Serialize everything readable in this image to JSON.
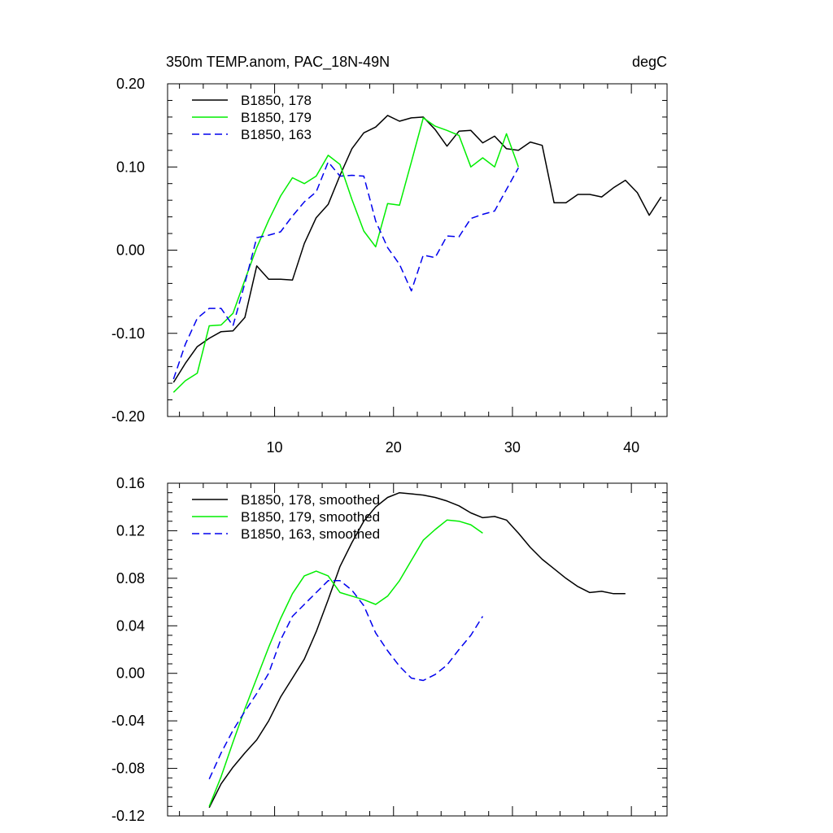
{
  "chart_data": [
    {
      "type": "line",
      "title": "350m TEMP.anom, PAC_18N-49N",
      "units": "degC",
      "xlim": [
        1,
        43
      ],
      "ylim": [
        -0.2,
        0.2
      ],
      "yticks": [
        "-0.20",
        "-0.10",
        "0.00",
        "0.10",
        "0.20"
      ],
      "xticks": [
        "10",
        "20",
        "30",
        "40"
      ],
      "series": [
        {
          "name": "B1850, 178",
          "color": "#000000",
          "dash": "solid",
          "x": [
            1.5,
            2.5,
            3.5,
            4.5,
            5.5,
            6.5,
            7.5,
            8.5,
            9.5,
            10.5,
            11.5,
            12.5,
            13.5,
            14.5,
            15.5,
            16.5,
            17.5,
            18.5,
            19.5,
            20.5,
            21.5,
            22.5,
            23.5,
            24.5,
            25.5,
            26.5,
            27.5,
            28.5,
            29.5,
            30.5,
            31.5,
            32.5,
            33.5,
            34.5,
            35.5,
            36.5,
            37.5,
            38.5,
            39.5,
            40.5,
            41.5,
            42.5
          ],
          "y": [
            -0.159,
            -0.136,
            -0.116,
            -0.106,
            -0.098,
            -0.097,
            -0.081,
            -0.019,
            -0.035,
            -0.035,
            -0.036,
            0.008,
            0.039,
            0.055,
            0.09,
            0.122,
            0.141,
            0.148,
            0.162,
            0.155,
            0.159,
            0.16,
            0.145,
            0.125,
            0.143,
            0.144,
            0.129,
            0.137,
            0.122,
            0.12,
            0.13,
            0.126,
            0.057,
            0.057,
            0.067,
            0.067,
            0.064,
            0.075,
            0.084,
            0.069,
            0.042,
            0.064
          ]
        },
        {
          "name": "B1850, 179",
          "color": "#00ee00",
          "dash": "solid",
          "x": [
            1.5,
            2.5,
            3.5,
            4.5,
            5.5,
            6.5,
            7.5,
            8.5,
            9.5,
            10.5,
            11.5,
            12.5,
            13.5,
            14.5,
            15.5,
            16.5,
            17.5,
            18.5,
            19.5,
            20.5,
            21.5,
            22.5,
            23.5,
            24.5,
            25.5,
            26.5,
            27.5,
            28.5,
            29.5,
            30.5
          ],
          "y": [
            -0.171,
            -0.157,
            -0.148,
            -0.091,
            -0.09,
            -0.076,
            -0.036,
            0.003,
            0.036,
            0.065,
            0.087,
            0.08,
            0.089,
            0.114,
            0.103,
            0.061,
            0.023,
            0.004,
            0.056,
            0.054,
            0.106,
            0.159,
            0.149,
            0.144,
            0.138,
            0.1,
            0.111,
            0.1,
            0.14,
            0.1
          ]
        },
        {
          "name": "B1850, 163",
          "color": "#0000ee",
          "dash": "dashed",
          "x": [
            1.5,
            2.5,
            3.5,
            4.5,
            5.5,
            6.5,
            7.5,
            8.5,
            9.5,
            10.5,
            11.5,
            12.5,
            13.5,
            14.5,
            15.5,
            16.5,
            17.5,
            18.5,
            19.5,
            20.5,
            21.5,
            22.5,
            23.5,
            24.5,
            25.5,
            26.5,
            27.5,
            28.5,
            29.5,
            30.5
          ],
          "y": [
            -0.155,
            -0.113,
            -0.082,
            -0.07,
            -0.07,
            -0.091,
            -0.04,
            0.015,
            0.018,
            0.022,
            0.041,
            0.058,
            0.07,
            0.106,
            0.089,
            0.09,
            0.089,
            0.035,
            0.003,
            -0.017,
            -0.049,
            -0.006,
            -0.009,
            0.017,
            0.016,
            0.038,
            0.043,
            0.047,
            0.073,
            0.099
          ]
        }
      ]
    },
    {
      "type": "line",
      "title": "",
      "xlim": [
        1,
        43
      ],
      "ylim": [
        -0.12,
        0.16
      ],
      "yticks": [
        "-0.12",
        "-0.08",
        "-0.04",
        "0.00",
        "0.04",
        "0.08",
        "0.12",
        "0.16"
      ],
      "xticks": [],
      "series": [
        {
          "name": "B1850, 178, smoothed",
          "color": "#000000",
          "dash": "solid",
          "x": [
            4.5,
            5.5,
            6.5,
            7.5,
            8.5,
            9.5,
            10.5,
            11.5,
            12.5,
            13.5,
            14.5,
            15.5,
            16.5,
            17.5,
            18.5,
            19.5,
            20.5,
            21.5,
            22.5,
            23.5,
            24.5,
            25.5,
            26.5,
            27.5,
            28.5,
            29.5,
            30.5,
            31.5,
            32.5,
            33.5,
            34.5,
            35.5,
            36.5,
            37.5,
            38.5,
            39.5
          ],
          "y": [
            -0.113,
            -0.093,
            -0.079,
            -0.067,
            -0.056,
            -0.04,
            -0.02,
            -0.004,
            0.012,
            0.035,
            0.062,
            0.09,
            0.11,
            0.128,
            0.14,
            0.148,
            0.152,
            0.151,
            0.15,
            0.148,
            0.145,
            0.141,
            0.135,
            0.131,
            0.132,
            0.129,
            0.118,
            0.106,
            0.096,
            0.088,
            0.08,
            0.073,
            0.068,
            0.069,
            0.067,
            0.067
          ]
        },
        {
          "name": "B1850, 179, smoothed",
          "color": "#00ee00",
          "dash": "solid",
          "x": [
            4.5,
            5.5,
            6.5,
            7.5,
            8.5,
            9.5,
            10.5,
            11.5,
            12.5,
            13.5,
            14.5,
            15.5,
            16.5,
            17.5,
            18.5,
            19.5,
            20.5,
            21.5,
            22.5,
            23.5,
            24.5,
            25.5,
            26.5,
            27.5
          ],
          "y": [
            -0.112,
            -0.087,
            -0.058,
            -0.03,
            -0.004,
            0.022,
            0.046,
            0.067,
            0.082,
            0.086,
            0.082,
            0.068,
            0.065,
            0.062,
            0.058,
            0.065,
            0.078,
            0.095,
            0.112,
            0.121,
            0.129,
            0.128,
            0.125,
            0.118
          ]
        },
        {
          "name": "B1850, 163, smoothed",
          "color": "#0000ee",
          "dash": "dashed",
          "x": [
            4.5,
            5.5,
            6.5,
            7.5,
            8.5,
            9.5,
            10.5,
            11.5,
            12.5,
            13.5,
            14.5,
            15.5,
            16.5,
            17.5,
            18.5,
            19.5,
            20.5,
            21.5,
            22.5,
            23.5,
            24.5,
            25.5,
            26.5,
            27.5
          ],
          "y": [
            -0.089,
            -0.067,
            -0.048,
            -0.032,
            -0.017,
            0.0,
            0.028,
            0.048,
            0.058,
            0.068,
            0.078,
            0.078,
            0.07,
            0.057,
            0.034,
            0.019,
            0.006,
            -0.004,
            -0.006,
            -0.001,
            0.007,
            0.02,
            0.032,
            0.048
          ]
        }
      ]
    }
  ]
}
